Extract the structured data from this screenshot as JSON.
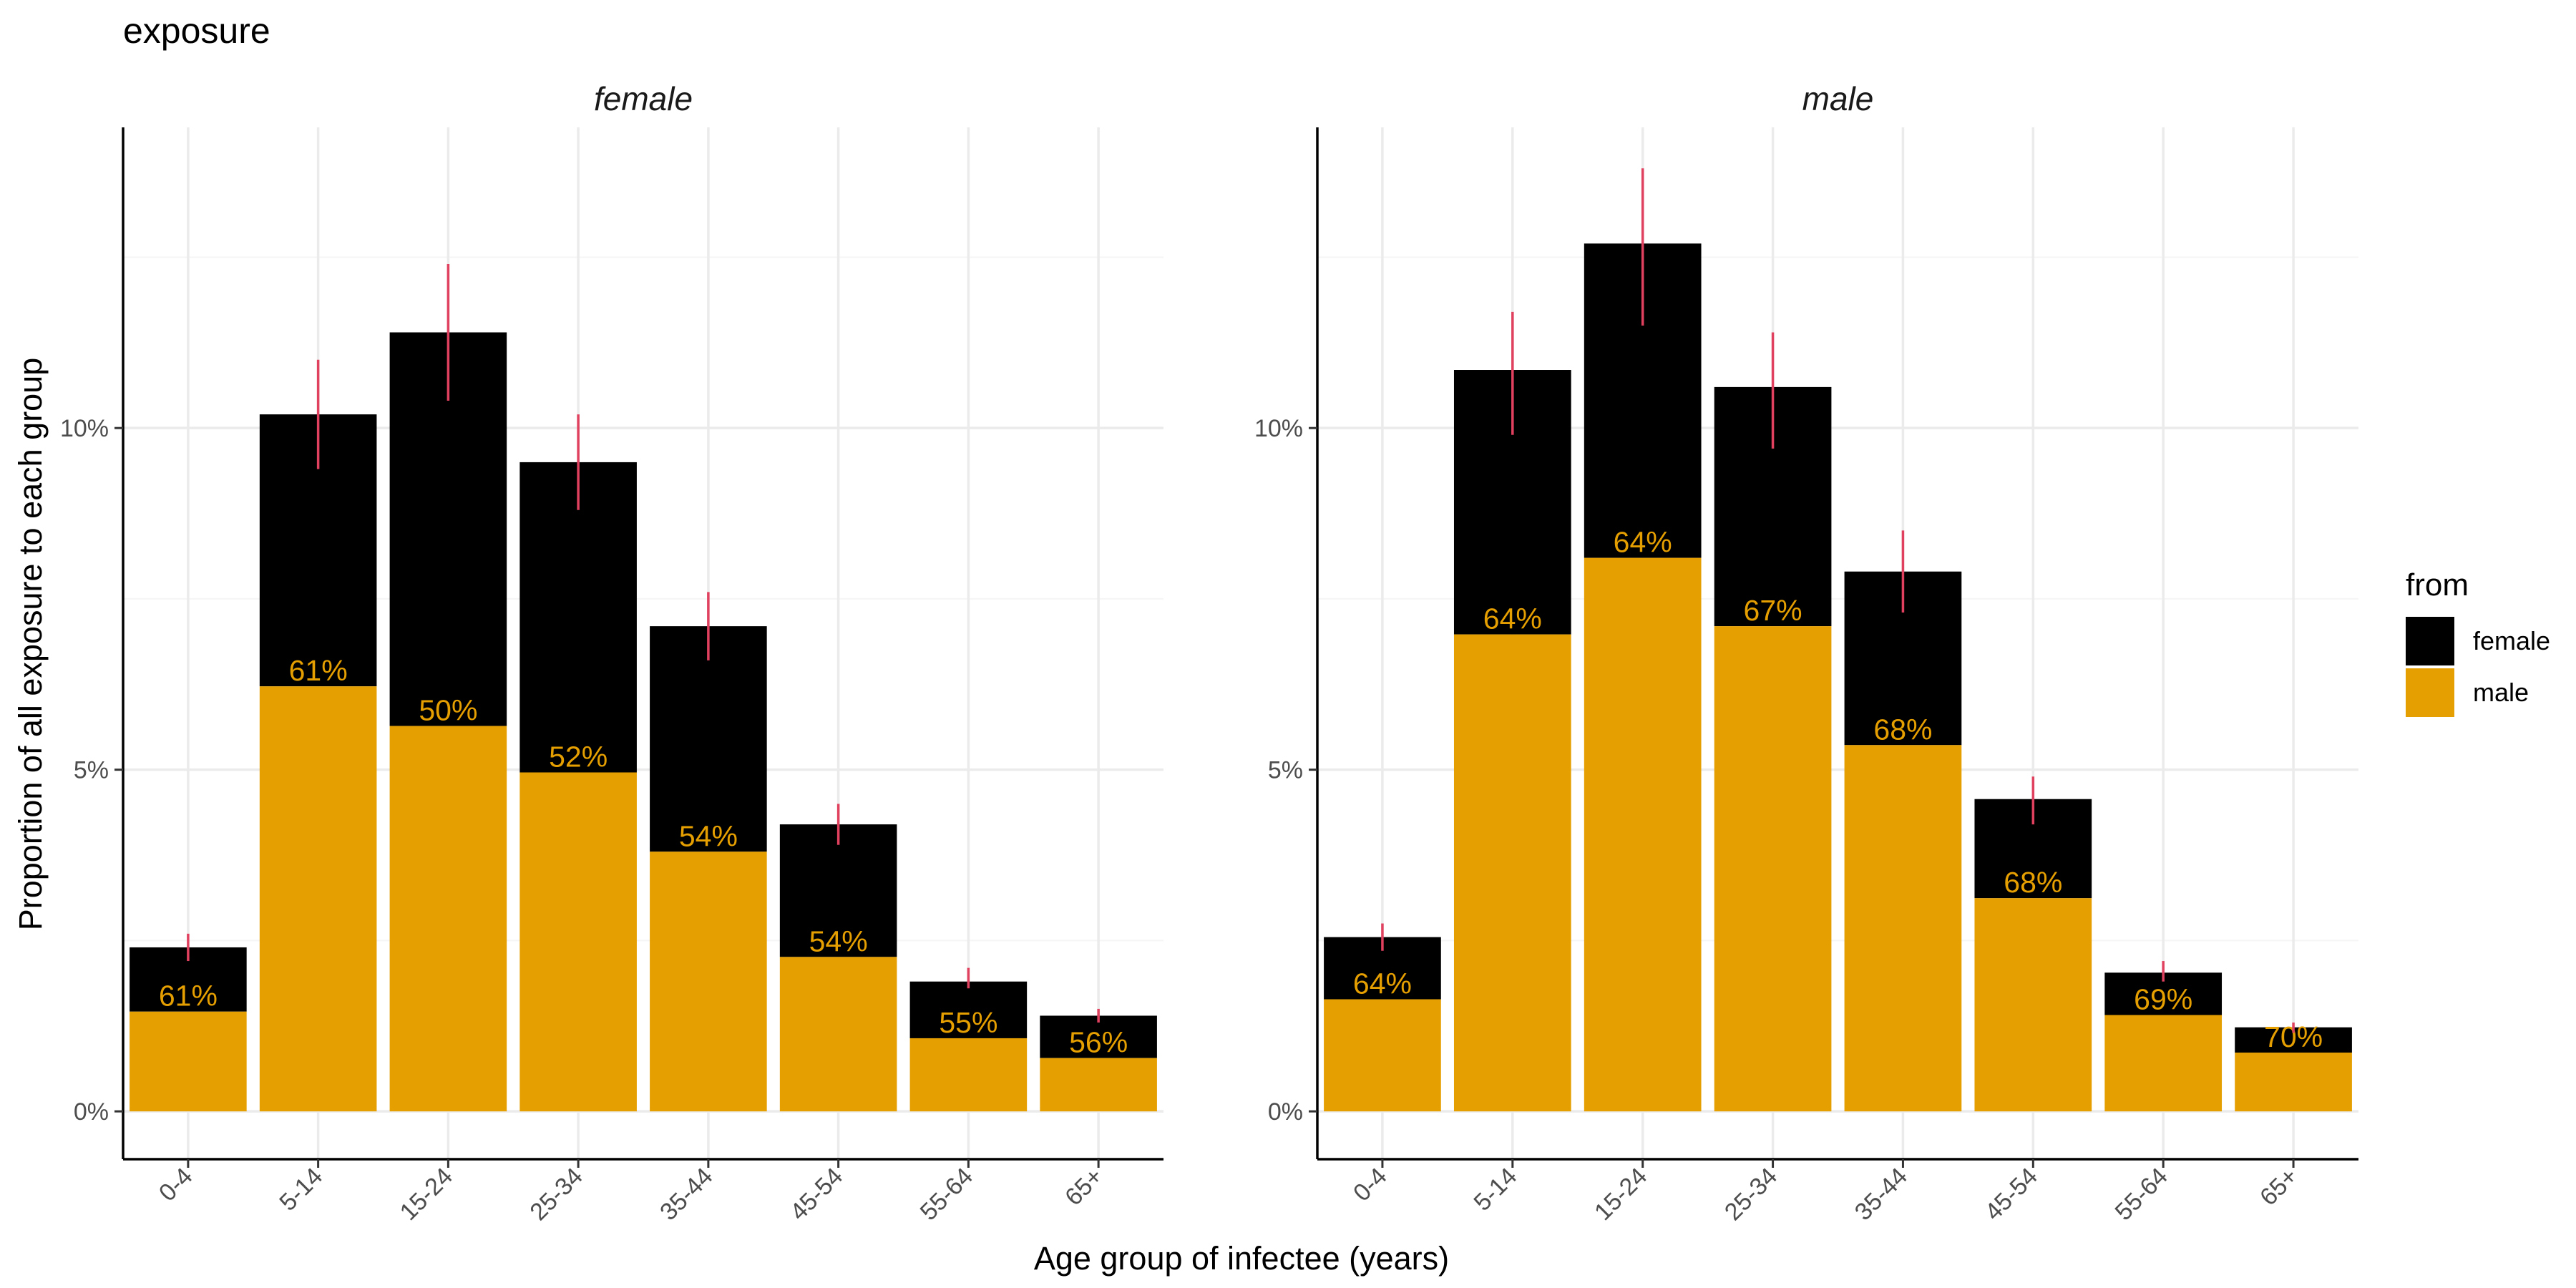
{
  "title": "exposure",
  "colors": {
    "female": "#000000",
    "male": "#E69F00",
    "error_bar": "#E0415E",
    "label": "#E69F00",
    "grid_major": "#EBEBEB",
    "grid_minor": "#F5F5F5"
  },
  "chart_data": {
    "type": "bar",
    "stacked": true,
    "xlabel": "Age group of infectee (years)",
    "ylabel": "Proportion of all exposure to each group",
    "categories": [
      "0-4",
      "5-14",
      "15-24",
      "25-34",
      "35-44",
      "45-54",
      "55-64",
      "65+"
    ],
    "ylim": [
      -0.007,
      0.144
    ],
    "yticks": [
      0,
      0.05,
      0.1
    ],
    "ytick_labels": [
      "0%",
      "5%",
      "10%"
    ],
    "grid": true,
    "legend": {
      "title": "from",
      "position": "right",
      "entries": [
        "female",
        "male"
      ]
    },
    "panels": [
      {
        "name": "female",
        "total": [
          0.024,
          0.102,
          0.114,
          0.095,
          0.071,
          0.042,
          0.019,
          0.014
        ],
        "male": [
          0.0146,
          0.0622,
          0.0564,
          0.0496,
          0.038,
          0.0226,
          0.0107,
          0.0078
        ],
        "err_low": [
          0.022,
          0.094,
          0.104,
          0.088,
          0.066,
          0.039,
          0.018,
          0.013
        ],
        "err_high": [
          0.026,
          0.11,
          0.124,
          0.102,
          0.076,
          0.045,
          0.021,
          0.015
        ],
        "male_pct_labels": [
          "61%",
          "61%",
          "50%",
          "52%",
          "54%",
          "54%",
          "55%",
          "56%"
        ]
      },
      {
        "name": "male",
        "total": [
          0.0255,
          0.1085,
          0.127,
          0.106,
          0.079,
          0.0457,
          0.0203,
          0.0123
        ],
        "male": [
          0.0164,
          0.0698,
          0.081,
          0.071,
          0.0536,
          0.0312,
          0.0141,
          0.0086
        ],
        "err_low": [
          0.0235,
          0.099,
          0.115,
          0.097,
          0.073,
          0.042,
          0.019,
          0.0115
        ],
        "err_high": [
          0.0275,
          0.117,
          0.138,
          0.114,
          0.085,
          0.049,
          0.022,
          0.013
        ],
        "male_pct_labels": [
          "64%",
          "64%",
          "64%",
          "67%",
          "68%",
          "68%",
          "69%",
          "70%"
        ]
      }
    ]
  }
}
